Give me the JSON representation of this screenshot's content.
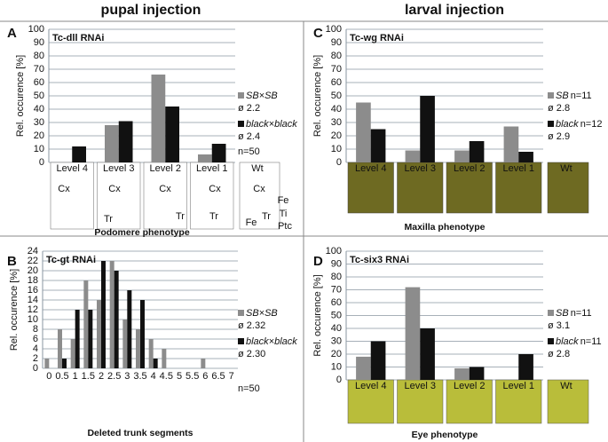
{
  "headers": [
    "pupal injection",
    "larval injection"
  ],
  "chart_data": [
    {
      "type": "bar",
      "panel": "A",
      "title": "Tc-dll RNAi",
      "y_label": "Rel. occurence [%]",
      "x_label": "Podomere phenotype",
      "categories": [
        "Level 4",
        "Level 3",
        "Level 2",
        "Level 1"
      ],
      "extra_category": "Wt",
      "series": [
        {
          "name": "SB×SB",
          "color": "#8c8c8c",
          "values": [
            0,
            28,
            66,
            6
          ],
          "mean": "ø 2.2"
        },
        {
          "name": "black×black",
          "color": "#111111",
          "values": [
            12,
            31,
            42,
            14
          ],
          "mean": "ø 2.4"
        }
      ],
      "note": "n=50",
      "image_labels": [
        "Cx",
        "Cx",
        "Cx",
        "Cx",
        "Cx",
        "Tr",
        "Tr",
        "Tr",
        "Tr",
        "Fe",
        "Fe",
        "Ti",
        "Ptc"
      ],
      "ylim": [
        0,
        100
      ],
      "yticks": [
        0,
        10,
        20,
        30,
        40,
        50,
        60,
        70,
        80,
        90,
        100
      ],
      "grid": true
    },
    {
      "type": "bar",
      "panel": "B",
      "title": "Tc-gt RNAi",
      "y_label": "Rel. occurence [%]",
      "x_label": "Deleted trunk segments",
      "categories": [
        "0",
        "0.5",
        "1",
        "1.5",
        "2",
        "2.5",
        "3",
        "3.5",
        "4",
        "4.5",
        "5",
        "5.5",
        "6",
        "6.5",
        "7"
      ],
      "series": [
        {
          "name": "SB×SB",
          "color": "#8c8c8c",
          "values": [
            2,
            8,
            6,
            18,
            14,
            22,
            10,
            8,
            6,
            4,
            0,
            0,
            2,
            0,
            0
          ],
          "mean": "ø 2.32"
        },
        {
          "name": "black×black",
          "color": "#111111",
          "values": [
            0,
            2,
            12,
            12,
            22,
            20,
            16,
            14,
            2,
            0,
            0,
            0,
            0,
            0,
            0
          ],
          "mean": "ø 2.30"
        }
      ],
      "note": "n=50",
      "ylim": [
        0,
        24
      ],
      "yticks": [
        0,
        2,
        4,
        6,
        8,
        10,
        12,
        14,
        16,
        18,
        20,
        22,
        24
      ],
      "grid": true
    },
    {
      "type": "bar",
      "panel": "C",
      "title": "Tc-wg RNAi",
      "y_label": "Rel. occurence [%]",
      "x_label": "Maxilla phenotype",
      "categories": [
        "Level 4",
        "Level 3",
        "Level 2",
        "Level 1"
      ],
      "extra_category": "Wt",
      "series": [
        {
          "name": "SB",
          "n": "n=11",
          "color": "#8c8c8c",
          "values": [
            45,
            9,
            9,
            27
          ],
          "mean": "ø 2.8"
        },
        {
          "name": "black",
          "n": "n=12",
          "color": "#111111",
          "values": [
            25,
            50,
            16,
            8
          ],
          "mean": "ø 2.9"
        }
      ],
      "ylim": [
        0,
        100
      ],
      "yticks": [
        0,
        10,
        20,
        30,
        40,
        50,
        60,
        70,
        80,
        90,
        100
      ],
      "grid": true
    },
    {
      "type": "bar",
      "panel": "D",
      "title": "Tc-six3 RNAi",
      "y_label": "Rel. occurence [%]",
      "x_label": "Eye phenotype",
      "categories": [
        "Level 4",
        "Level 3",
        "Level 2",
        "Level 1"
      ],
      "extra_category": "Wt",
      "series": [
        {
          "name": "SB",
          "n": "n=11",
          "color": "#8c8c8c",
          "values": [
            18,
            72,
            9,
            0
          ],
          "mean": "ø 3.1"
        },
        {
          "name": "black",
          "n": "n=11",
          "color": "#111111",
          "values": [
            30,
            40,
            10,
            20
          ],
          "mean": "ø 2.8"
        }
      ],
      "ylim": [
        0,
        100
      ],
      "yticks": [
        0,
        10,
        20,
        30,
        40,
        50,
        60,
        70,
        80,
        90,
        100
      ],
      "grid": true
    }
  ]
}
